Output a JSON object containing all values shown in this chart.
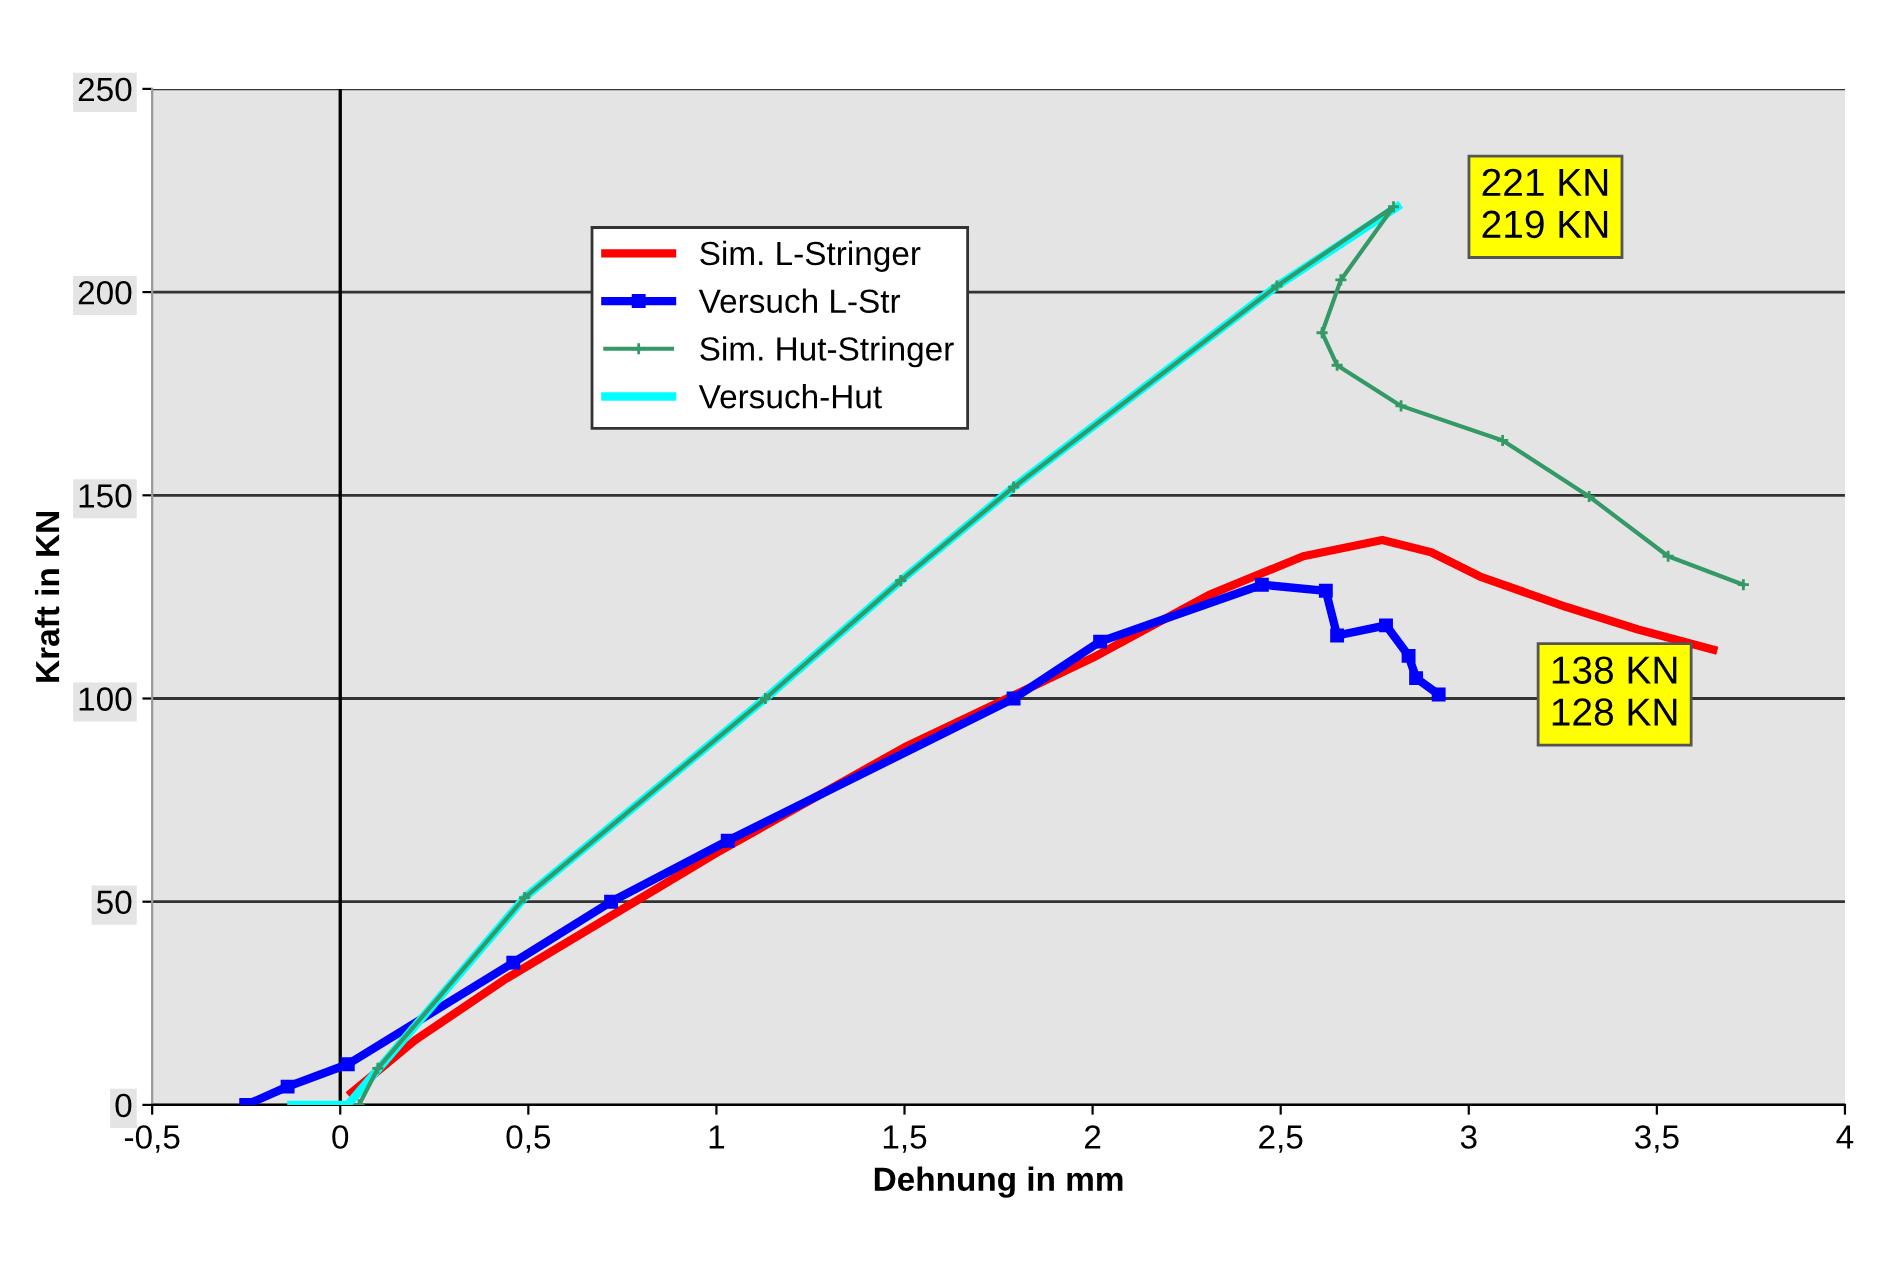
{
  "chart_data": {
    "type": "line",
    "xlabel": "Dehnung in mm",
    "ylabel": "Kraft in KN",
    "xlim": [
      -0.5,
      4
    ],
    "ylim": [
      0,
      250
    ],
    "xticks": [
      {
        "value": -0.5,
        "label": "-0,5"
      },
      0,
      {
        "value": 0.5,
        "label": "0,5"
      },
      1,
      {
        "value": 1.5,
        "label": "1,5"
      },
      2,
      {
        "value": 2.5,
        "label": "2,5"
      },
      3,
      {
        "value": 3.5,
        "label": "3,5"
      },
      4
    ],
    "yticks": [
      0,
      50,
      100,
      150,
      200,
      250
    ],
    "grid": "y",
    "ref_lines": [
      {
        "axis": "x",
        "value": 0,
        "color": "#000000"
      }
    ],
    "legend": "top left",
    "line_style": "solid",
    "series": [
      {
        "name": "Sim. L-Stringer",
        "color": "#ff0000",
        "marker": "none",
        "x": [
          0.03,
          0.2,
          0.44,
          1.0,
          1.5,
          2.0,
          2.31,
          2.56,
          2.77,
          2.9,
          3.03,
          3.26,
          3.45,
          3.65
        ],
        "values": [
          3,
          16,
          31,
          62,
          88,
          110,
          125.5,
          135,
          139,
          136,
          130,
          122.5,
          117,
          112
        ]
      },
      {
        "name": "Versuch L-Str",
        "color": "#0000ff",
        "marker": "square",
        "x": [
          -0.25,
          -0.14,
          0.02,
          0.46,
          0.72,
          1.03,
          1.79,
          2.02,
          2.45,
          2.62,
          2.65,
          2.78,
          2.84,
          2.86,
          2.92
        ],
        "values": [
          0,
          4.5,
          10,
          35,
          50,
          65,
          100,
          114,
          128,
          126.5,
          115.5,
          118,
          110.5,
          105,
          101
        ]
      },
      {
        "name": "Sim. Hut-Stringer",
        "color": "#339966",
        "marker": "cross",
        "x": [
          0.05,
          0.1,
          0.49,
          1.13,
          1.49,
          1.79,
          2.49,
          2.8,
          2.66,
          2.61,
          2.65,
          2.82,
          3.09,
          3.32,
          3.53,
          3.73
        ],
        "values": [
          0,
          9,
          51,
          100,
          129,
          152,
          201.5,
          221,
          203,
          190,
          182,
          172,
          163.5,
          149.7,
          135,
          128
        ]
      },
      {
        "name": "Versuch-Hut",
        "color": "#00ffff",
        "marker": "none",
        "x": [
          -0.13,
          0.02,
          0.49,
          1.13,
          1.49,
          1.79,
          2.49,
          2.81
        ],
        "values": [
          0,
          0,
          51,
          100,
          129,
          152,
          201.5,
          221
        ]
      }
    ],
    "annotations": [
      {
        "text": "221 KN\n219 KN",
        "x": 2.81,
        "y": 221
      },
      {
        "text": "138 KN\n128 KN",
        "x": 2.92,
        "y": 101
      }
    ]
  }
}
